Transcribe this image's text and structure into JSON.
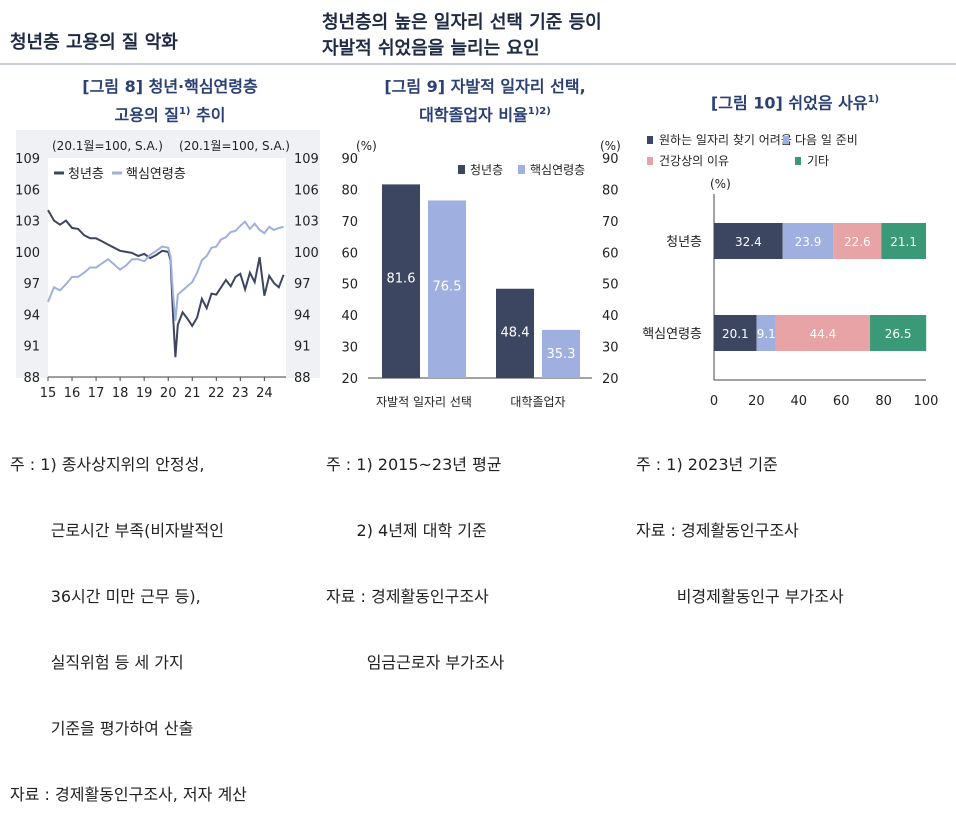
{
  "header": {
    "left": "청년층 고용의 질 악화",
    "right_line1": "청년층의 높은 일자리 선택 기준 등이",
    "right_line2": "자발적 쉬었음을 늘리는 요인"
  },
  "figure8": {
    "title_line1": "[그림 8] 청년·핵심연령층",
    "title_line2": "고용의 질",
    "title_sup": "1)",
    "title_tail": " 추이",
    "unit_left": "(20.1월=100, S.A.)",
    "unit_right": "(20.1월=100, S.A.)",
    "notes": [
      "주 : 1) 종사상지위의 안정성,",
      "        근로시간 부족(비자발적인",
      "        36시간 미만 근무 등),",
      "        실직위험 등 세 가지",
      "        기준을 평가하여 산출",
      "자료 : 경제활동인구조사, 저자 계산"
    ]
  },
  "figure9": {
    "title_line1": "[그림 9] 자발적 일자리 선택,",
    "title_line2": "대학졸업자 비율",
    "title_sup": "1)2)",
    "unit_left": "(%)",
    "unit_right": "(%)",
    "notes": [
      "주 : 1) 2015~23년 평균",
      "      2) 4년제 대학 기준",
      "자료 : 경제활동인구조사",
      "        임금근로자 부가조사"
    ]
  },
  "figure10": {
    "title": "[그림 10] 쉬었음 사유",
    "title_sup": "1)",
    "unit": "(%)",
    "notes": [
      "주 : 1) 2023년 기준",
      "자료 : 경제활동인구조사",
      "        비경제활동인구 부가조사"
    ]
  },
  "colors": {
    "dark": "#3d4660",
    "light": "#9fb0e0",
    "pink": "#e7a3a5",
    "green": "#3a9a77"
  },
  "chart_data": [
    {
      "type": "line",
      "x_ticks": [
        "15",
        "16",
        "17",
        "18",
        "19",
        "20",
        "21",
        "22",
        "23",
        "24"
      ],
      "xlim": [
        2015,
        2024.9
      ],
      "ylim": [
        88,
        109
      ],
      "y_ticks": [
        88,
        91,
        94,
        97,
        100,
        103,
        106,
        109
      ],
      "series": [
        {
          "name": "청년층",
          "color": "#3d4660",
          "points": [
            [
              2015.0,
              104.0
            ],
            [
              2015.25,
              103.0
            ],
            [
              2015.5,
              102.6
            ],
            [
              2015.75,
              103.0
            ],
            [
              2016.0,
              102.3
            ],
            [
              2016.25,
              102.2
            ],
            [
              2016.5,
              101.6
            ],
            [
              2016.75,
              101.3
            ],
            [
              2017.0,
              101.3
            ],
            [
              2017.25,
              101.0
            ],
            [
              2017.5,
              100.7
            ],
            [
              2017.75,
              100.4
            ],
            [
              2018.0,
              100.1
            ],
            [
              2018.25,
              100.0
            ],
            [
              2018.5,
              99.9
            ],
            [
              2018.75,
              99.6
            ],
            [
              2019.0,
              99.8
            ],
            [
              2019.25,
              99.4
            ],
            [
              2019.5,
              99.7
            ],
            [
              2019.75,
              100.1
            ],
            [
              2020.0,
              100.0
            ],
            [
              2020.1,
              99.2
            ],
            [
              2020.2,
              94.0
            ],
            [
              2020.3,
              89.9
            ],
            [
              2020.4,
              93.0
            ],
            [
              2020.6,
              94.2
            ],
            [
              2020.8,
              93.6
            ],
            [
              2021.0,
              92.9
            ],
            [
              2021.2,
              93.7
            ],
            [
              2021.4,
              95.5
            ],
            [
              2021.6,
              94.6
            ],
            [
              2021.8,
              96.0
            ],
            [
              2022.0,
              95.9
            ],
            [
              2022.2,
              96.6
            ],
            [
              2022.4,
              97.3
            ],
            [
              2022.6,
              96.7
            ],
            [
              2022.8,
              97.6
            ],
            [
              2023.0,
              97.9
            ],
            [
              2023.2,
              96.4
            ],
            [
              2023.4,
              98.0
            ],
            [
              2023.6,
              97.1
            ],
            [
              2023.8,
              99.5
            ],
            [
              2024.0,
              95.8
            ],
            [
              2024.2,
              97.7
            ],
            [
              2024.4,
              97.0
            ],
            [
              2024.6,
              96.6
            ],
            [
              2024.8,
              97.8
            ]
          ]
        },
        {
          "name": "핵심연령층",
          "color": "#9fb0e0",
          "points": [
            [
              2015.0,
              95.2
            ],
            [
              2015.25,
              96.6
            ],
            [
              2015.5,
              96.3
            ],
            [
              2015.75,
              96.9
            ],
            [
              2016.0,
              97.6
            ],
            [
              2016.25,
              97.6
            ],
            [
              2016.5,
              98.0
            ],
            [
              2016.75,
              98.5
            ],
            [
              2017.0,
              98.5
            ],
            [
              2017.25,
              98.9
            ],
            [
              2017.5,
              99.3
            ],
            [
              2017.75,
              98.8
            ],
            [
              2018.0,
              98.3
            ],
            [
              2018.25,
              98.7
            ],
            [
              2018.5,
              99.3
            ],
            [
              2018.75,
              99.3
            ],
            [
              2019.0,
              99.1
            ],
            [
              2019.25,
              99.7
            ],
            [
              2019.5,
              100.1
            ],
            [
              2019.75,
              100.5
            ],
            [
              2020.0,
              100.4
            ],
            [
              2020.1,
              99.5
            ],
            [
              2020.2,
              96.0
            ],
            [
              2020.3,
              93.4
            ],
            [
              2020.4,
              95.9
            ],
            [
              2020.6,
              96.3
            ],
            [
              2020.8,
              96.7
            ],
            [
              2021.0,
              97.1
            ],
            [
              2021.2,
              98.0
            ],
            [
              2021.4,
              99.2
            ],
            [
              2021.6,
              99.6
            ],
            [
              2021.8,
              100.4
            ],
            [
              2022.0,
              100.5
            ],
            [
              2022.2,
              101.2
            ],
            [
              2022.4,
              101.4
            ],
            [
              2022.6,
              101.9
            ],
            [
              2022.8,
              102.0
            ],
            [
              2023.0,
              102.5
            ],
            [
              2023.2,
              102.9
            ],
            [
              2023.4,
              102.2
            ],
            [
              2023.6,
              102.7
            ],
            [
              2023.8,
              102.1
            ],
            [
              2024.0,
              101.8
            ],
            [
              2024.2,
              102.4
            ],
            [
              2024.4,
              102.1
            ],
            [
              2024.6,
              102.3
            ],
            [
              2024.8,
              102.4
            ]
          ]
        }
      ]
    },
    {
      "type": "bar",
      "categories": [
        "자발적 일자리 선택",
        "대학졸업자"
      ],
      "ylim": [
        20,
        90
      ],
      "y_ticks": [
        20,
        30,
        40,
        50,
        60,
        70,
        80,
        90
      ],
      "series": [
        {
          "name": "청년층",
          "color": "#3d4660",
          "values": [
            81.6,
            48.4
          ]
        },
        {
          "name": "핵심연령층",
          "color": "#9fb0e0",
          "values": [
            76.5,
            35.3
          ]
        }
      ]
    },
    {
      "type": "bar",
      "orientation": "horizontal-stacked",
      "categories": [
        "청년층",
        "핵심연령층"
      ],
      "xlim": [
        0,
        100
      ],
      "x_ticks": [
        0,
        20,
        40,
        60,
        80,
        100
      ],
      "series": [
        {
          "name": "원하는 일자리 찾기 어려움",
          "color": "#3d4660",
          "values": [
            32.4,
            20.1
          ]
        },
        {
          "name": "다음 일 준비",
          "color": "#9fb0e0",
          "values": [
            23.9,
            9.1
          ]
        },
        {
          "name": "건강상의 이유",
          "color": "#e7a3a5",
          "values": [
            22.6,
            44.4
          ]
        },
        {
          "name": "기타",
          "color": "#3a9a77",
          "values": [
            21.1,
            26.5
          ]
        }
      ]
    }
  ]
}
